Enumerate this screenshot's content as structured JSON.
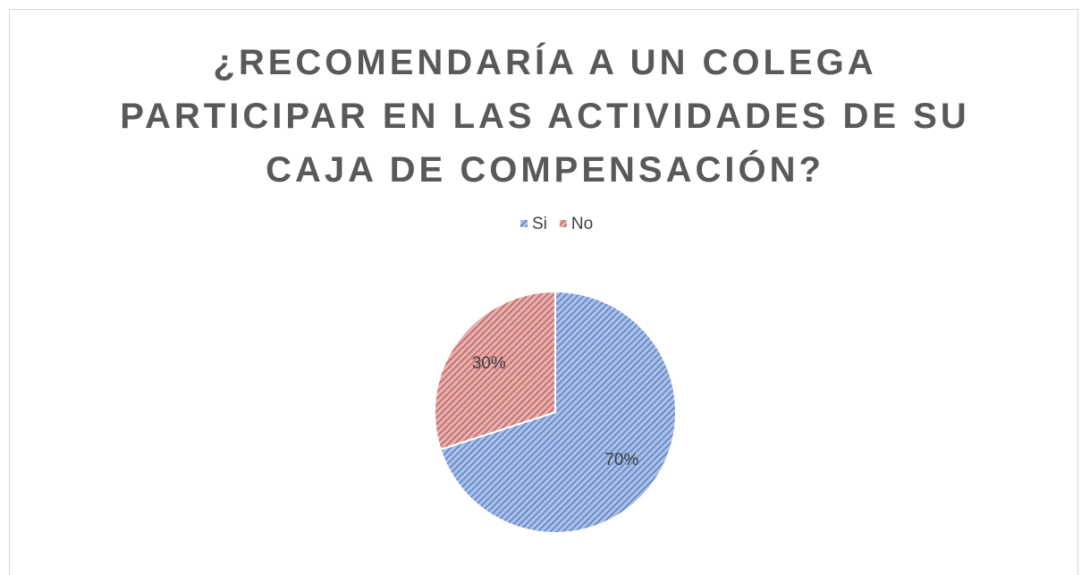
{
  "chart_data": {
    "type": "pie",
    "title": "¿RECOMENDARÍA A UN COLEGA\nPARTICIPAR EN LAS ACTIVIDADES DE SU\nCAJA DE COMPENSACIÓN?",
    "categories": [
      "Si",
      "No"
    ],
    "values": [
      70,
      30
    ],
    "value_labels": [
      "70%",
      "30%"
    ],
    "colors": [
      "#4472c4",
      "#c0504d"
    ],
    "legend": "top"
  }
}
